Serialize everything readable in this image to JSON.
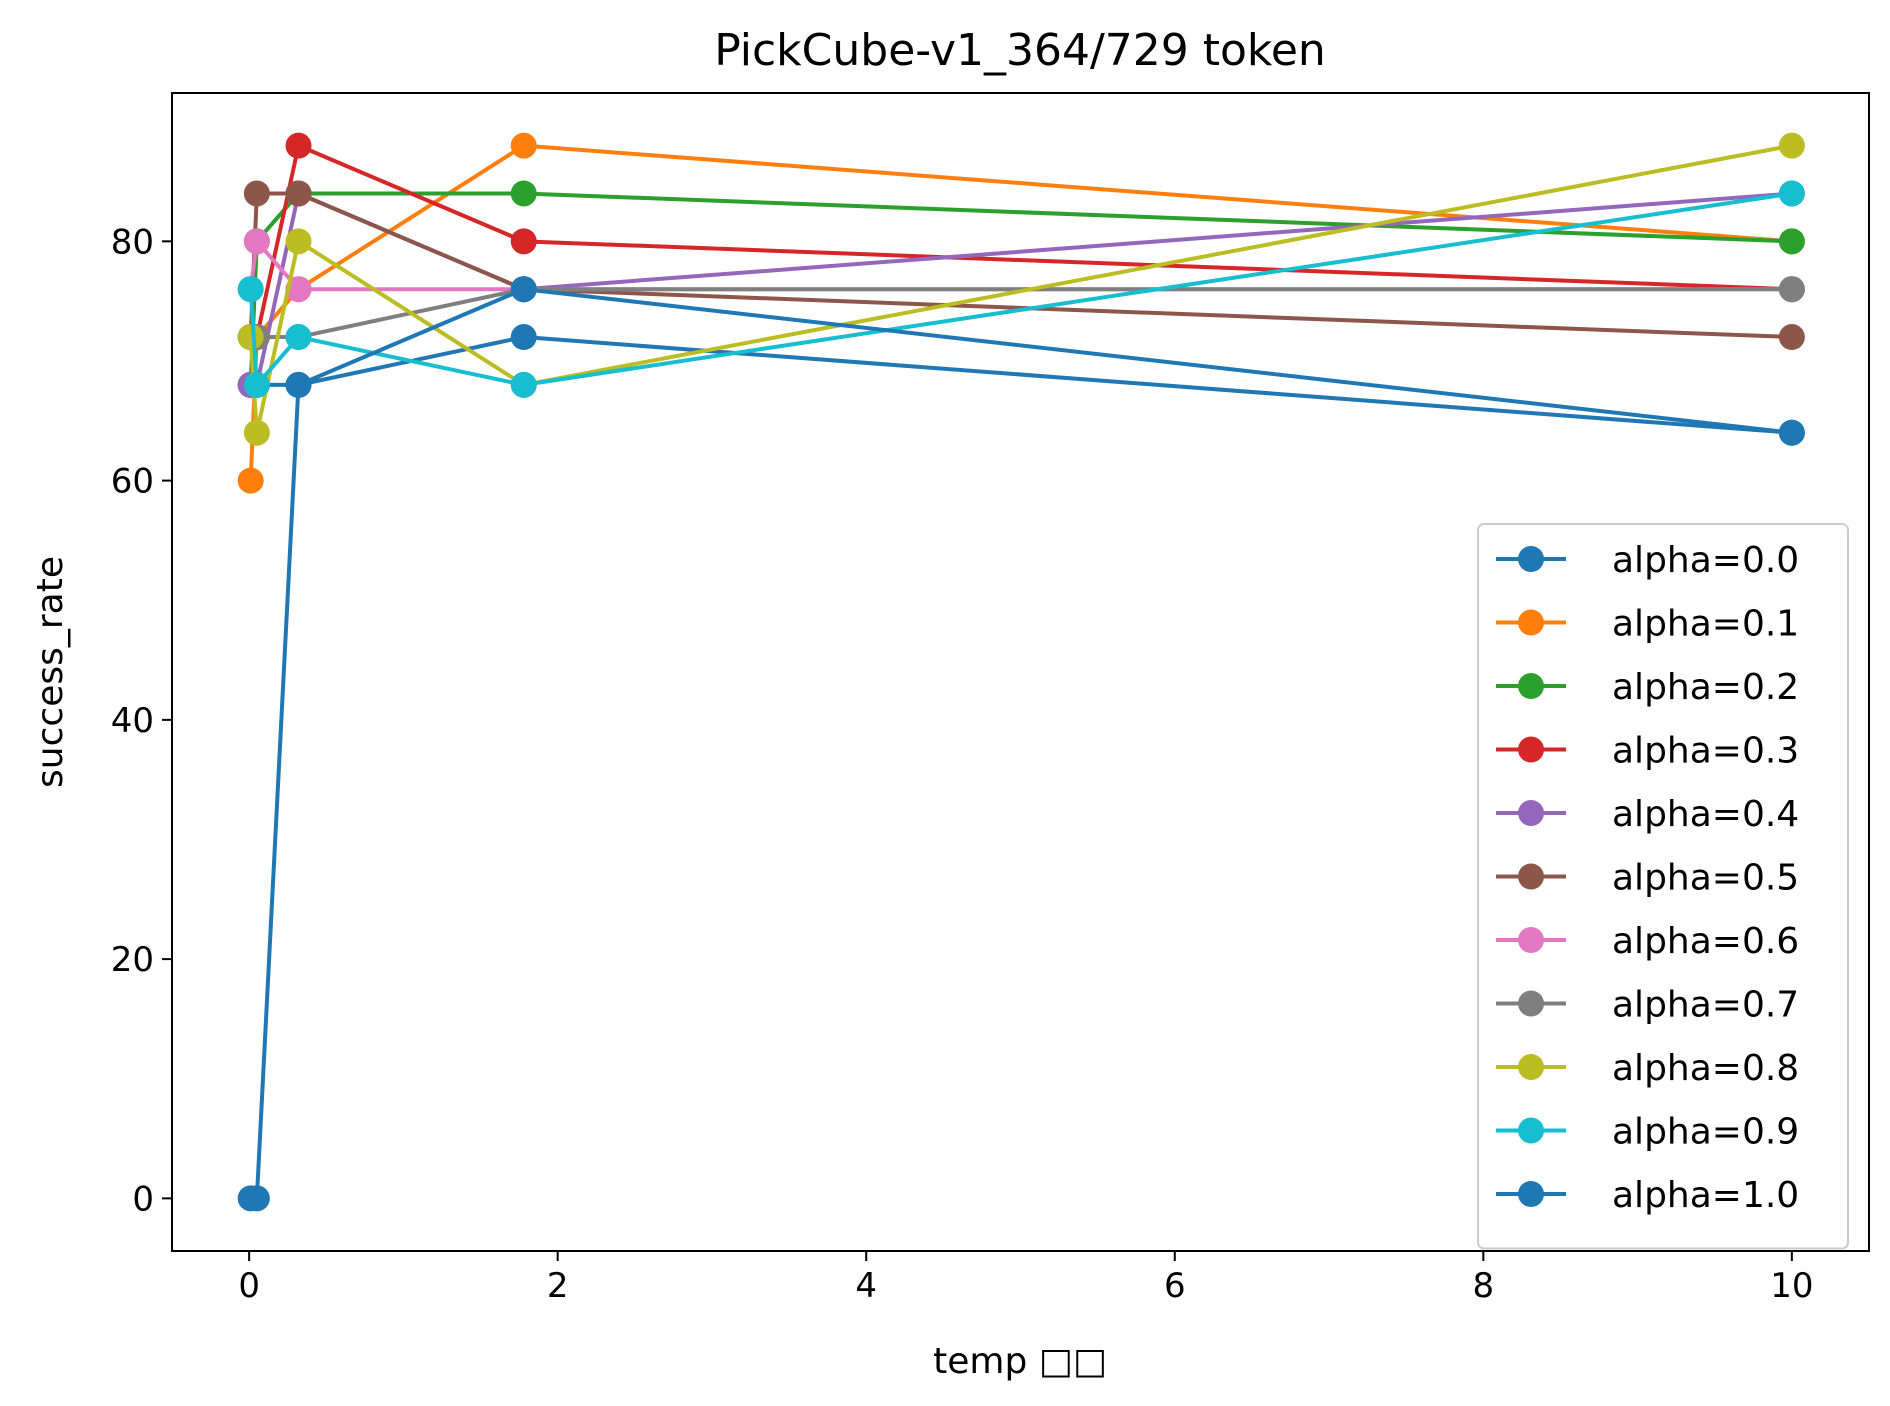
{
  "chart_data": {
    "type": "line",
    "title": "PickCube-v1_364/729 token",
    "xlabel": "temp □□",
    "ylabel": "success_rate",
    "xlim": [
      -0.5,
      10.5
    ],
    "ylim": [
      -4.4,
      92.4
    ],
    "xticks": [
      0,
      2,
      4,
      6,
      8,
      10
    ],
    "yticks": [
      0,
      20,
      40,
      60,
      80
    ],
    "grid": false,
    "legend_position": "lower-right",
    "x": [
      0.01,
      0.05,
      0.32,
      1.78,
      10
    ],
    "series": [
      {
        "name": "alpha=0.0",
        "color": "#1f77b4",
        "values": [
          72,
          68,
          68,
          72,
          64
        ]
      },
      {
        "name": "alpha=0.1",
        "color": "#ff7f0e",
        "values": [
          60,
          72,
          76,
          88,
          80
        ]
      },
      {
        "name": "alpha=0.2",
        "color": "#2ca02c",
        "values": [
          68,
          80,
          84,
          84,
          80
        ]
      },
      {
        "name": "alpha=0.3",
        "color": "#d62728",
        "values": [
          68,
          72,
          88,
          80,
          76
        ]
      },
      {
        "name": "alpha=0.4",
        "color": "#9467bd",
        "values": [
          68,
          68,
          84,
          76,
          84
        ]
      },
      {
        "name": "alpha=0.5",
        "color": "#8c564b",
        "values": [
          72,
          84,
          84,
          76,
          72
        ]
      },
      {
        "name": "alpha=0.6",
        "color": "#e377c2",
        "values": [
          76,
          80,
          76,
          76,
          76
        ]
      },
      {
        "name": "alpha=0.7",
        "color": "#7f7f7f",
        "values": [
          72,
          72,
          72,
          76,
          76
        ]
      },
      {
        "name": "alpha=0.8",
        "color": "#bcbd22",
        "values": [
          72,
          64,
          80,
          68,
          88
        ]
      },
      {
        "name": "alpha=0.9",
        "color": "#17becf",
        "values": [
          76,
          68,
          72,
          68,
          84
        ]
      },
      {
        "name": "alpha=1.0",
        "color": "#1f77b4",
        "values": [
          0,
          0,
          68,
          76,
          64
        ]
      }
    ]
  }
}
